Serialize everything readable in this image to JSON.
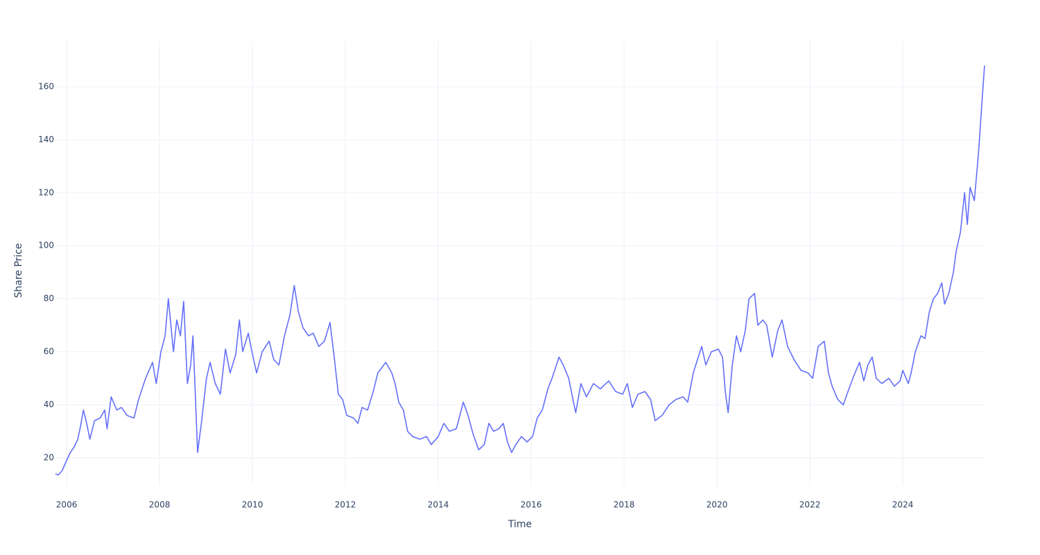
{
  "chart_data": {
    "type": "line",
    "x_label": "Time",
    "y_label": "Share Price",
    "x": [
      2005.76,
      2005.82,
      2005.9,
      2006.0,
      2006.08,
      2006.16,
      2006.24,
      2006.3,
      2006.36,
      2006.42,
      2006.5,
      2006.6,
      2006.72,
      2006.82,
      2006.87,
      2006.96,
      2007.08,
      2007.18,
      2007.3,
      2007.45,
      2007.55,
      2007.7,
      2007.85,
      2007.93,
      2008.03,
      2008.12,
      2008.19,
      2008.3,
      2008.37,
      2008.45,
      2008.52,
      2008.6,
      2008.67,
      2008.72,
      2008.78,
      2008.82,
      2008.9,
      2009.01,
      2009.09,
      2009.2,
      2009.31,
      2009.42,
      2009.52,
      2009.64,
      2009.72,
      2009.79,
      2009.91,
      2009.99,
      2010.09,
      2010.21,
      2010.36,
      2010.46,
      2010.57,
      2010.69,
      2010.81,
      2010.9,
      2010.99,
      2011.09,
      2011.21,
      2011.31,
      2011.43,
      2011.55,
      2011.67,
      2011.76,
      2011.85,
      2011.94,
      2012.03,
      2012.18,
      2012.27,
      2012.36,
      2012.48,
      2012.6,
      2012.7,
      2012.87,
      2013.0,
      2013.07,
      2013.15,
      2013.25,
      2013.34,
      2013.45,
      2013.6,
      2013.75,
      2013.85,
      2014.0,
      2014.12,
      2014.24,
      2014.39,
      2014.54,
      2014.64,
      2014.75,
      2014.87,
      2014.99,
      2015.09,
      2015.19,
      2015.31,
      2015.4,
      2015.49,
      2015.58,
      2015.67,
      2015.79,
      2015.91,
      2016.03,
      2016.13,
      2016.24,
      2016.36,
      2016.45,
      2016.6,
      2016.69,
      2016.81,
      2016.9,
      2016.96,
      2017.07,
      2017.19,
      2017.34,
      2017.49,
      2017.67,
      2017.82,
      2017.97,
      2018.07,
      2018.18,
      2018.3,
      2018.45,
      2018.57,
      2018.67,
      2018.82,
      2018.97,
      2019.12,
      2019.27,
      2019.37,
      2019.49,
      2019.67,
      2019.76,
      2019.88,
      2020.03,
      2020.12,
      2020.18,
      2020.24,
      2020.33,
      2020.42,
      2020.51,
      2020.61,
      2020.69,
      2020.81,
      2020.88,
      2020.99,
      2021.07,
      2021.19,
      2021.31,
      2021.4,
      2021.52,
      2021.66,
      2021.81,
      2021.96,
      2022.06,
      2022.18,
      2022.31,
      2022.4,
      2022.48,
      2022.6,
      2022.72,
      2022.84,
      2022.97,
      2023.07,
      2023.16,
      2023.25,
      2023.34,
      2023.43,
      2023.55,
      2023.7,
      2023.82,
      2023.94,
      2024.0,
      2024.12,
      2024.18,
      2024.27,
      2024.39,
      2024.48,
      2024.57,
      2024.66,
      2024.75,
      2024.84,
      2024.9,
      2024.99,
      2025.09,
      2025.15,
      2025.24,
      2025.33,
      2025.39,
      2025.45,
      2025.54,
      2025.63,
      2025.72,
      2025.76
    ],
    "series": [
      {
        "color": "#636efa",
        "values": [
          14,
          13.5,
          15,
          19,
          22,
          24,
          27,
          32,
          38,
          34,
          27,
          34,
          35,
          38,
          31,
          43,
          38,
          39,
          36,
          35,
          42,
          50,
          56,
          48,
          60,
          66,
          80,
          60,
          72,
          66,
          79,
          48,
          55,
          66,
          40,
          22,
          33,
          50,
          56,
          48,
          44,
          61,
          52,
          59,
          72,
          60,
          67,
          60,
          52,
          60,
          64,
          57,
          55,
          66,
          74,
          85,
          75,
          69,
          66,
          67,
          62,
          64,
          71,
          58,
          44,
          42,
          36,
          35,
          33,
          39,
          38,
          45,
          52,
          56,
          52,
          48,
          41,
          38,
          30,
          28,
          27,
          28,
          25,
          28,
          33,
          30,
          31,
          41,
          36,
          29,
          23,
          25,
          33,
          30,
          31,
          33,
          26,
          22,
          25,
          28,
          26,
          28,
          35,
          38,
          46,
          50,
          58,
          55,
          50,
          42,
          37,
          48,
          43,
          48,
          46,
          49,
          45,
          44,
          48,
          39,
          44,
          45,
          42,
          34,
          36,
          40,
          42,
          43,
          41,
          52,
          62,
          55,
          60,
          61,
          58,
          45,
          37,
          55,
          66,
          60,
          68,
          80,
          82,
          70,
          72,
          70,
          58,
          68,
          72,
          62,
          57,
          53,
          52,
          50,
          62,
          64,
          52,
          47,
          42,
          40,
          46,
          52,
          56,
          49,
          55,
          58,
          50,
          48,
          50,
          47,
          49,
          53,
          48,
          52,
          60,
          66,
          65,
          75,
          80,
          82,
          86,
          78,
          82,
          90,
          98,
          105,
          120,
          108,
          122,
          117,
          135,
          158,
          168
        ]
      }
    ],
    "xlim": [
      2005.76,
      2025.76
    ],
    "xticks": [
      2006,
      2008,
      2010,
      2012,
      2014,
      2016,
      2018,
      2020,
      2022,
      2024
    ],
    "ylim": [
      9.5,
      177
    ],
    "yticks": [
      20,
      40,
      60,
      80,
      100,
      120,
      140,
      160
    ],
    "grid": true
  }
}
